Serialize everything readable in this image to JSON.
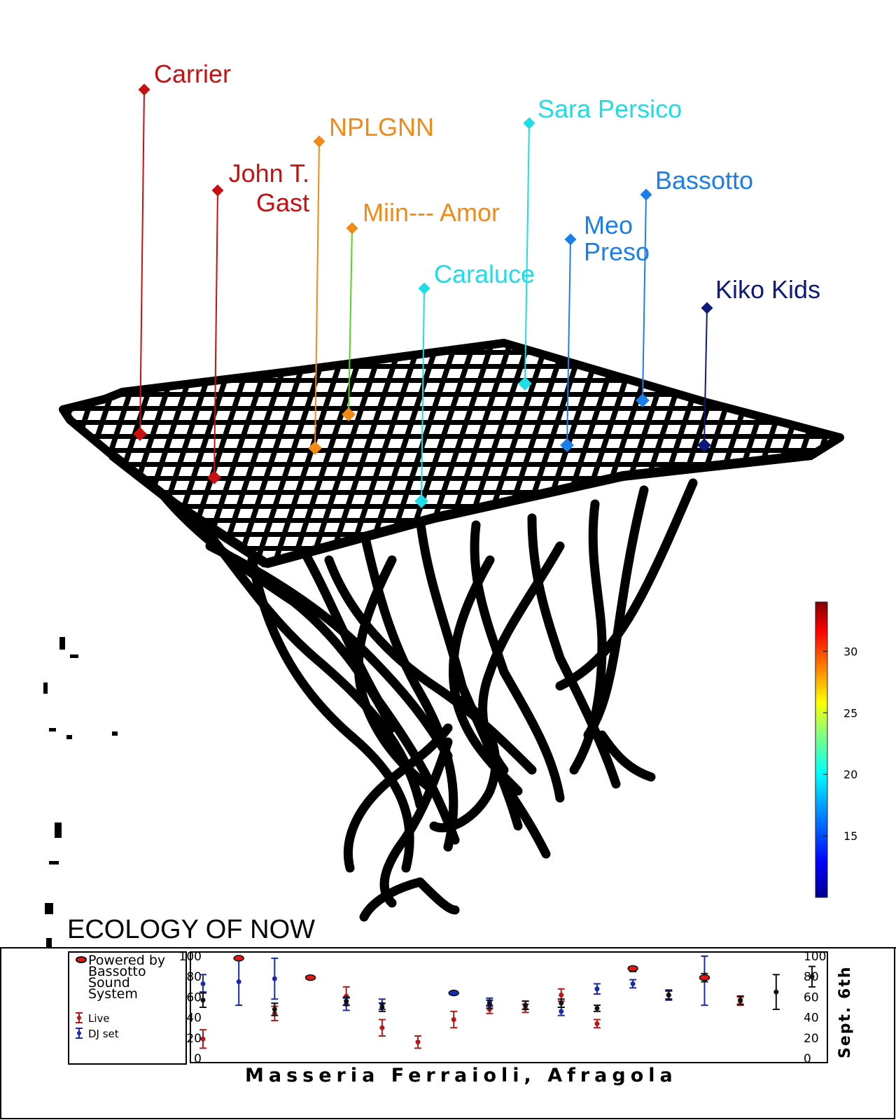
{
  "title": "ECOLOGY OF NOW",
  "venue": "Masseria Ferraioli, Afragola",
  "date": "Sept. 6th",
  "colorbar": {
    "ticks": [
      "30",
      "25",
      "20",
      "15"
    ],
    "range": [
      10,
      34
    ],
    "colors": [
      "#00008f",
      "#0000ff",
      "#00b0ff",
      "#00ffff",
      "#80ff80",
      "#ffff00",
      "#ff8000",
      "#ff0000",
      "#800000"
    ]
  },
  "artists": [
    {
      "name": "Carrier",
      "color": "#c81010"
    },
    {
      "name": "John T. Gast",
      "lines": [
        "John T.",
        "Gast"
      ],
      "color": "#c81010"
    },
    {
      "name": "NPLGNN",
      "color": "#f28a18"
    },
    {
      "name": "Miin--- Amor",
      "color": "#f28a18",
      "stem_color": "#55d41e"
    },
    {
      "name": "Caraluce",
      "color": "#1fdde6"
    },
    {
      "name": "Sara Persico",
      "color": "#1fdde6"
    },
    {
      "name": "Meo Preso",
      "lines": [
        "Meo",
        "Preso"
      ],
      "color": "#1a7fe8"
    },
    {
      "name": "Bassotto",
      "color": "#1a7fe8"
    },
    {
      "name": "Kiko Kids",
      "color": "#0d1a7a"
    }
  ],
  "legend": {
    "powered": [
      "Powered by",
      "Bassotto",
      "Sound",
      "System"
    ],
    "live": "Live",
    "dj": "DJ set"
  },
  "chart_data": {
    "type": "scatter",
    "ylim": [
      0,
      100
    ],
    "yticks": [
      "100",
      "80",
      "60",
      "40",
      "20",
      "0"
    ],
    "series": [
      {
        "name": "Live",
        "color": "#b01a1a",
        "points": [
          {
            "x": 1,
            "y": 19,
            "lo": 10,
            "hi": 28
          },
          {
            "x": 3,
            "y": 44,
            "lo": 37,
            "hi": 51
          },
          {
            "x": 5,
            "y": 61,
            "lo": 52,
            "hi": 70
          },
          {
            "x": 6,
            "y": 30,
            "lo": 22,
            "hi": 38
          },
          {
            "x": 7,
            "y": 16,
            "lo": 10,
            "hi": 22
          },
          {
            "x": 8,
            "y": 38,
            "lo": 30,
            "hi": 46
          },
          {
            "x": 9,
            "y": 48,
            "lo": 44,
            "hi": 52
          },
          {
            "x": 10,
            "y": 49,
            "lo": 45,
            "hi": 53
          },
          {
            "x": 11,
            "y": 62,
            "lo": 56,
            "hi": 68
          },
          {
            "x": 12,
            "y": 34,
            "lo": 30,
            "hi": 38
          },
          {
            "x": 14,
            "y": 62,
            "lo": 58,
            "hi": 66
          },
          {
            "x": 16,
            "y": 56,
            "lo": 52,
            "hi": 60
          }
        ]
      },
      {
        "name": "DJ set",
        "color": "#1a2aa8",
        "points": [
          {
            "x": 1,
            "y": 73,
            "lo": 65,
            "hi": 82
          },
          {
            "x": 2,
            "y": 75,
            "lo": 52,
            "hi": 98
          },
          {
            "x": 3,
            "y": 78,
            "lo": 58,
            "hi": 98
          },
          {
            "x": 5,
            "y": 53,
            "lo": 47,
            "hi": 59
          },
          {
            "x": 6,
            "y": 53,
            "lo": 48,
            "hi": 58
          },
          {
            "x": 9,
            "y": 55,
            "lo": 51,
            "hi": 59
          },
          {
            "x": 10,
            "y": 52,
            "lo": 48,
            "hi": 56
          },
          {
            "x": 11,
            "y": 46,
            "lo": 42,
            "hi": 50
          },
          {
            "x": 12,
            "y": 68,
            "lo": 63,
            "hi": 73
          },
          {
            "x": 13,
            "y": 73,
            "lo": 69,
            "hi": 77
          },
          {
            "x": 14,
            "y": 62,
            "lo": 57,
            "hi": 67
          },
          {
            "x": 15,
            "y": 78,
            "lo": 52,
            "hi": 100
          }
        ]
      },
      {
        "name": "Powered by Bassotto Sound System",
        "color": "#111111",
        "points": [
          {
            "x": 1,
            "y": 57,
            "lo": 50,
            "hi": 64
          },
          {
            "x": 3,
            "y": 48,
            "lo": 42,
            "hi": 54
          },
          {
            "x": 5,
            "y": 56,
            "lo": 52,
            "hi": 60
          },
          {
            "x": 6,
            "y": 50,
            "lo": 46,
            "hi": 54
          },
          {
            "x": 9,
            "y": 53,
            "lo": 49,
            "hi": 57
          },
          {
            "x": 10,
            "y": 52,
            "lo": 48,
            "hi": 56
          },
          {
            "x": 11,
            "y": 54,
            "lo": 50,
            "hi": 58
          },
          {
            "x": 12,
            "y": 49,
            "lo": 46,
            "hi": 52
          },
          {
            "x": 13,
            "y": 87,
            "lo": 85,
            "hi": 89
          },
          {
            "x": 14,
            "y": 62,
            "lo": 58,
            "hi": 66
          },
          {
            "x": 15,
            "y": 79,
            "lo": 75,
            "hi": 83
          },
          {
            "x": 16,
            "y": 57,
            "lo": 53,
            "hi": 61
          },
          {
            "x": 17,
            "y": 65,
            "lo": 48,
            "hi": 82
          },
          {
            "x": 18,
            "y": 80,
            "lo": 70,
            "hi": 90
          }
        ]
      },
      {
        "name": "highlight",
        "color": "#e01818",
        "points": [
          {
            "x": 2,
            "y": 98,
            "lo": 98,
            "hi": 98
          },
          {
            "x": 4,
            "y": 79,
            "lo": 79,
            "hi": 79
          },
          {
            "x": 13,
            "y": 88,
            "lo": 88,
            "hi": 88
          },
          {
            "x": 15,
            "y": 79,
            "lo": 79,
            "hi": 79
          }
        ]
      },
      {
        "name": "highlight-blue",
        "color": "#1a2aa8",
        "points": [
          {
            "x": 8,
            "y": 64,
            "lo": 64,
            "hi": 64
          }
        ]
      }
    ]
  }
}
